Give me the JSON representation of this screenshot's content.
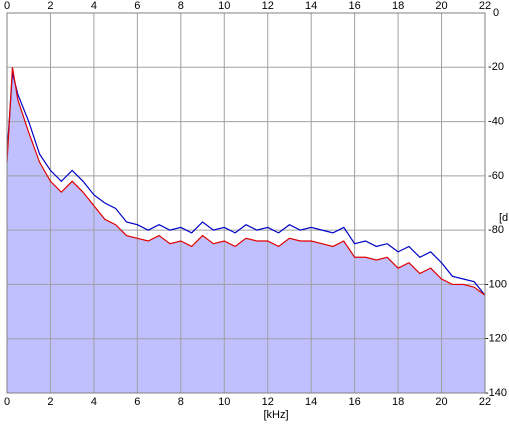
{
  "chart_data": {
    "type": "line",
    "x_label": "[kHz]",
    "y_label": "[d",
    "x": [
      0,
      0.25,
      0.5,
      1,
      1.5,
      2,
      2.5,
      3,
      3.5,
      4,
      4.5,
      5,
      5.5,
      6,
      6.5,
      7,
      7.5,
      8,
      8.5,
      9,
      9.5,
      10,
      10.5,
      11,
      11.5,
      12,
      12.5,
      13,
      13.5,
      14,
      14.5,
      15,
      15.5,
      16,
      16.5,
      17,
      17.5,
      18,
      18.5,
      19,
      19.5,
      20,
      20.5,
      21,
      21.5,
      22
    ],
    "series": [
      {
        "color": "#0000c8",
        "values": [
          -52,
          -22,
          -30,
          -40,
          -52,
          -58,
          -62,
          -58,
          -62,
          -67,
          -70,
          -72,
          -77,
          -78,
          -80,
          -78,
          -80,
          -79,
          -81,
          -77,
          -80,
          -79,
          -81,
          -78,
          -80,
          -79,
          -81,
          -78,
          -80,
          -79,
          -80,
          -81,
          -79,
          -85,
          -84,
          -86,
          -85,
          -88,
          -86,
          -90,
          -88,
          -92,
          -97,
          -98,
          -99,
          -104
        ]
      },
      {
        "color": "#e00000",
        "fill": "#c0c0ff",
        "values": [
          -55,
          -20,
          -32,
          -44,
          -55,
          -62,
          -66,
          -62,
          -66,
          -71,
          -76,
          -78,
          -82,
          -83,
          -84,
          -82,
          -85,
          -84,
          -86,
          -82,
          -85,
          -84,
          -86,
          -83,
          -84,
          -84,
          -86,
          -83,
          -84,
          -84,
          -85,
          -86,
          -84,
          -90,
          -90,
          -91,
          -90,
          -94,
          -92,
          -96,
          -94,
          -98,
          -100,
          -100,
          -101,
          -104
        ]
      }
    ],
    "xlim": [
      0,
      22
    ],
    "xticks": [
      0,
      2,
      4,
      6,
      8,
      10,
      12,
      14,
      16,
      18,
      20,
      22
    ],
    "ylim": [
      -140,
      0
    ],
    "yticks": [
      0,
      -20,
      -40,
      -60,
      -80,
      -100,
      -120,
      -140
    ],
    "grid": true
  }
}
